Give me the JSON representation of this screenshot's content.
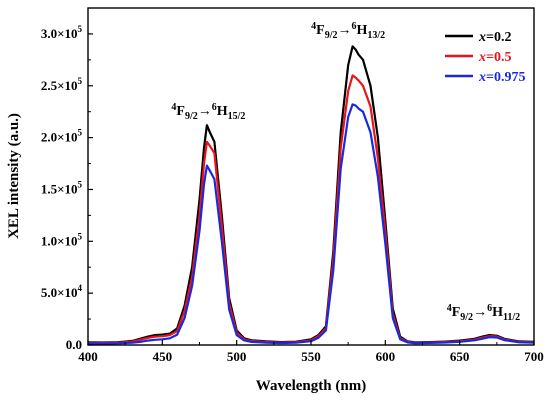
{
  "chart_data": {
    "type": "line",
    "xlabel": "Wavelength (nm)",
    "ylabel": "XEL intensity (a.u.)",
    "xlim": [
      400,
      700
    ],
    "ylim": [
      0,
      325000
    ],
    "x_ticks": [
      {
        "value": 400,
        "label": "400"
      },
      {
        "value": 450,
        "label": "450"
      },
      {
        "value": 500,
        "label": "500"
      },
      {
        "value": 550,
        "label": "550"
      },
      {
        "value": 600,
        "label": "600"
      },
      {
        "value": 650,
        "label": "650"
      },
      {
        "value": 700,
        "label": "700"
      }
    ],
    "y_ticks": [
      {
        "value": 0,
        "base": "0.0",
        "exp": ""
      },
      {
        "value": 50000,
        "base": "5.0×10",
        "exp": "4"
      },
      {
        "value": 100000,
        "base": "1.0×10",
        "exp": "5"
      },
      {
        "value": 150000,
        "base": "1.5×10",
        "exp": "5"
      },
      {
        "value": 200000,
        "base": "2.0×10",
        "exp": "5"
      },
      {
        "value": 250000,
        "base": "2.5×10",
        "exp": "5"
      },
      {
        "value": 300000,
        "base": "3.0×10",
        "exp": "5"
      }
    ],
    "grid": false,
    "legend_position": "top-right",
    "annotations": [
      {
        "id": "peak-480",
        "sup1": "4",
        "base1": "F",
        "sub1": "9/2",
        "arrow": "→",
        "sup2": "6",
        "base2": "H",
        "sub2": "15/2",
        "x": 481,
        "y": 222000
      },
      {
        "id": "peak-575",
        "sup1": "4",
        "base1": "F",
        "sub1": "9/2",
        "arrow": "→",
        "sup2": "6",
        "base2": "H",
        "sub2": "13/2",
        "x": 575,
        "y": 300000
      },
      {
        "id": "peak-660",
        "sup1": "4",
        "base1": "F",
        "sub1": "9/2",
        "arrow": "→",
        "sup2": "6",
        "base2": "H",
        "sub2": "11/2",
        "x": 666,
        "y": 28000
      }
    ],
    "x": [
      400,
      410,
      420,
      430,
      435,
      440,
      445,
      450,
      455,
      460,
      465,
      470,
      475,
      478,
      480,
      482,
      485,
      490,
      495,
      500,
      505,
      510,
      520,
      530,
      540,
      550,
      555,
      560,
      565,
      570,
      575,
      578,
      580,
      582,
      585,
      590,
      595,
      600,
      605,
      610,
      615,
      620,
      630,
      640,
      650,
      660,
      665,
      670,
      675,
      680,
      690,
      700
    ],
    "series": [
      {
        "name": "x=0.2",
        "color": "#000000",
        "values": [
          2600,
          2400,
          2700,
          4000,
          6000,
          8000,
          9500,
          10000,
          11000,
          16000,
          38000,
          75000,
          140000,
          190000,
          212000,
          205000,
          196000,
          125000,
          45000,
          14000,
          6500,
          4500,
          3500,
          2800,
          3200,
          5500,
          9500,
          18000,
          90000,
          205000,
          270000,
          288000,
          285000,
          280000,
          275000,
          250000,
          200000,
          120000,
          35000,
          8000,
          3500,
          2500,
          2800,
          3300,
          4200,
          6000,
          8000,
          9500,
          9000,
          6000,
          3500,
          3000
        ]
      },
      {
        "name": "x=0.5",
        "color": "#e8141b",
        "values": [
          2000,
          1900,
          2200,
          3300,
          5000,
          6800,
          8000,
          8500,
          9500,
          13500,
          33000,
          66000,
          125000,
          175000,
          196000,
          192000,
          185000,
          115000,
          40000,
          12000,
          5500,
          3800,
          2900,
          2300,
          2700,
          4500,
          8500,
          16000,
          82000,
          190000,
          245000,
          260000,
          258000,
          255000,
          250000,
          230000,
          180000,
          110000,
          30000,
          6500,
          3000,
          2200,
          2400,
          2900,
          3700,
          5200,
          7000,
          8500,
          8200,
          5300,
          3000,
          2500
        ]
      },
      {
        "name": "x=0.975",
        "color": "#1a29e0",
        "values": [
          1500,
          1400,
          1600,
          2200,
          3000,
          4200,
          5000,
          5500,
          6500,
          10000,
          26000,
          57000,
          110000,
          155000,
          173000,
          168000,
          160000,
          100000,
          34000,
          9500,
          4500,
          3000,
          2300,
          1900,
          2200,
          3700,
          7000,
          14000,
          72000,
          170000,
          220000,
          232000,
          231000,
          228000,
          225000,
          205000,
          162000,
          98000,
          26000,
          5500,
          2500,
          1800,
          2000,
          2400,
          3100,
          4500,
          6000,
          7500,
          7200,
          4700,
          2600,
          2200
        ]
      }
    ]
  }
}
